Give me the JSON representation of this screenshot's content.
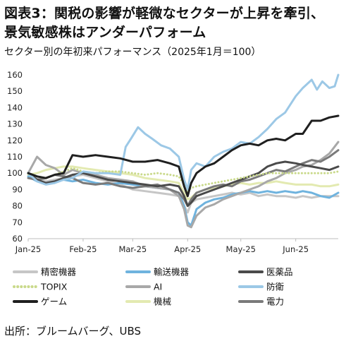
{
  "header": {
    "title_line1": "図表3：関税の影響が軽微なセクターが上昇を牽引、",
    "title_line2": "景気敏感株はアンダーパフォーム",
    "subtitle": "セクター別の年初来パフォーマンス（2025年1月＝100）"
  },
  "footer": {
    "source": "出所：ブルームバーグ、UBS"
  },
  "chart_data": {
    "type": "line",
    "title": "セクター別の年初来パフォーマンス（2025年1月＝100）",
    "xlabel": "",
    "ylabel": "",
    "x_ticks": [
      "Jan-25",
      "Feb-25",
      "Mar-25",
      "Apr-25",
      "May-25",
      "Jun-25"
    ],
    "x_range": [
      0,
      175
    ],
    "x_tick_positions": [
      0,
      31,
      59,
      90,
      120,
      151
    ],
    "ylim": [
      60,
      160
    ],
    "y_ticks": [
      60,
      70,
      80,
      90,
      100,
      110,
      120,
      130,
      140,
      150,
      160
    ],
    "grid": false,
    "legend_position": "bottom",
    "series": [
      {
        "name": "精密機器",
        "color": "#c6c6c6",
        "style": "solid",
        "x": [
          0,
          5,
          10,
          15,
          20,
          25,
          31,
          38,
          45,
          52,
          59,
          66,
          73,
          80,
          85,
          88,
          90,
          92,
          95,
          100,
          105,
          110,
          115,
          120,
          125,
          130,
          135,
          140,
          145,
          151,
          155,
          160,
          165,
          170,
          175
        ],
        "values": [
          100,
          97,
          95,
          96,
          97,
          98,
          99,
          97,
          95,
          93,
          90,
          89,
          88,
          87,
          86,
          80,
          76,
          82,
          84,
          85,
          86,
          87,
          88,
          87,
          88,
          86,
          87,
          86,
          86,
          85,
          86,
          85,
          86,
          86,
          86
        ]
      },
      {
        "name": "輸送機器",
        "color": "#6fb3de",
        "style": "solid",
        "x": [
          0,
          5,
          10,
          15,
          20,
          25,
          31,
          38,
          45,
          52,
          59,
          66,
          73,
          80,
          85,
          88,
          90,
          92,
          95,
          100,
          105,
          110,
          115,
          120,
          125,
          130,
          135,
          140,
          145,
          151,
          155,
          160,
          165,
          170,
          175
        ],
        "values": [
          98,
          95,
          94,
          95,
          96,
          95,
          96,
          94,
          93,
          94,
          93,
          92,
          91,
          90,
          88,
          80,
          70,
          68,
          78,
          82,
          84,
          85,
          87,
          88,
          89,
          88,
          89,
          88,
          89,
          88,
          89,
          88,
          86,
          85,
          88
        ]
      },
      {
        "name": "医薬品",
        "color": "#4a4a4a",
        "style": "solid",
        "x": [
          0,
          5,
          10,
          15,
          20,
          25,
          31,
          38,
          45,
          52,
          59,
          66,
          73,
          80,
          85,
          88,
          90,
          92,
          95,
          100,
          105,
          110,
          115,
          120,
          125,
          130,
          135,
          140,
          145,
          151,
          155,
          160,
          165,
          170,
          175
        ],
        "values": [
          100,
          96,
          94,
          95,
          97,
          99,
          100,
          98,
          96,
          95,
          94,
          93,
          92,
          93,
          92,
          86,
          80,
          82,
          86,
          88,
          90,
          92,
          94,
          96,
          98,
          100,
          104,
          106,
          107,
          106,
          105,
          104,
          103,
          102,
          104
        ]
      },
      {
        "name": "TOPIX",
        "color": "#c9d98a",
        "style": "dotted",
        "x": [
          0,
          5,
          10,
          15,
          20,
          25,
          31,
          38,
          45,
          52,
          59,
          66,
          73,
          80,
          85,
          88,
          90,
          92,
          95,
          100,
          105,
          110,
          115,
          120,
          125,
          130,
          135,
          140,
          145,
          151,
          155,
          160,
          165,
          170,
          175
        ],
        "values": [
          100,
          98,
          97,
          99,
          101,
          103,
          101,
          100,
          101,
          101,
          100,
          99,
          100,
          99,
          98,
          93,
          89,
          91,
          92,
          93,
          94,
          95,
          96,
          97,
          98,
          99,
          100,
          100,
          100,
          100,
          100,
          100,
          100,
          100,
          101
        ]
      },
      {
        "name": "AI",
        "color": "#a8a8a8",
        "style": "solid",
        "x": [
          0,
          5,
          10,
          15,
          20,
          25,
          31,
          38,
          45,
          52,
          59,
          66,
          73,
          80,
          85,
          88,
          90,
          92,
          95,
          100,
          105,
          110,
          115,
          120,
          125,
          130,
          135,
          140,
          145,
          151,
          155,
          160,
          165,
          170,
          175
        ],
        "values": [
          100,
          110,
          105,
          103,
          99,
          102,
          100,
          99,
          97,
          96,
          95,
          92,
          91,
          90,
          86,
          78,
          68,
          67,
          74,
          79,
          81,
          84,
          86,
          88,
          90,
          92,
          95,
          97,
          100,
          102,
          104,
          105,
          108,
          112,
          119
        ]
      },
      {
        "name": "防衛",
        "color": "#9cc8e6",
        "style": "solid",
        "x": [
          0,
          5,
          10,
          15,
          20,
          25,
          31,
          38,
          45,
          52,
          55,
          58,
          62,
          66,
          70,
          75,
          80,
          85,
          88,
          90,
          92,
          95,
          100,
          105,
          110,
          115,
          120,
          125,
          130,
          135,
          140,
          145,
          151,
          155,
          160,
          163,
          166,
          170,
          173,
          175
        ],
        "values": [
          100,
          95,
          93,
          94,
          96,
          97,
          101,
          100,
          100,
          99,
          116,
          121,
          128,
          124,
          121,
          117,
          115,
          110,
          96,
          90,
          102,
          106,
          104,
          110,
          113,
          115,
          119,
          118,
          122,
          127,
          133,
          137,
          147,
          152,
          157,
          151,
          156,
          152,
          153,
          160
        ]
      },
      {
        "name": "ゲーム",
        "color": "#1f1f1f",
        "style": "solid",
        "x": [
          0,
          5,
          10,
          15,
          20,
          25,
          31,
          38,
          45,
          52,
          59,
          66,
          73,
          80,
          85,
          88,
          90,
          92,
          95,
          100,
          105,
          110,
          115,
          120,
          125,
          130,
          135,
          140,
          145,
          151,
          155,
          160,
          165,
          170,
          175
        ],
        "values": [
          100,
          98,
          97,
          99,
          100,
          111,
          110,
          111,
          110,
          109,
          107,
          107,
          108,
          106,
          104,
          92,
          86,
          94,
          100,
          104,
          106,
          110,
          114,
          117,
          118,
          117,
          120,
          121,
          120,
          124,
          124,
          132,
          132,
          134,
          135
        ]
      },
      {
        "name": "機械",
        "color": "#e3eab1",
        "style": "solid",
        "x": [
          0,
          5,
          10,
          15,
          20,
          25,
          31,
          38,
          45,
          52,
          59,
          66,
          73,
          80,
          85,
          88,
          90,
          92,
          95,
          100,
          105,
          110,
          115,
          120,
          125,
          130,
          135,
          140,
          145,
          151,
          155,
          160,
          165,
          170,
          175
        ],
        "values": [
          99,
          100,
          102,
          103,
          104,
          104,
          103,
          102,
          101,
          100,
          99,
          97,
          96,
          95,
          94,
          88,
          84,
          85,
          88,
          90,
          91,
          92,
          93,
          94,
          93,
          94,
          94,
          95,
          94,
          93,
          93,
          93,
          92,
          92,
          93
        ]
      },
      {
        "name": "電力",
        "color": "#7a7a7a",
        "style": "solid",
        "x": [
          0,
          5,
          10,
          15,
          20,
          25,
          31,
          38,
          45,
          52,
          59,
          66,
          73,
          80,
          85,
          88,
          90,
          92,
          95,
          100,
          105,
          110,
          115,
          120,
          125,
          130,
          135,
          140,
          145,
          151,
          155,
          160,
          165,
          170,
          175
        ],
        "values": [
          97,
          96,
          97,
          99,
          98,
          97,
          94,
          93,
          94,
          92,
          91,
          92,
          93,
          90,
          88,
          84,
          80,
          84,
          88,
          90,
          92,
          93,
          92,
          95,
          96,
          98,
          100,
          102,
          101,
          104,
          106,
          108,
          107,
          110,
          114
        ]
      }
    ]
  }
}
